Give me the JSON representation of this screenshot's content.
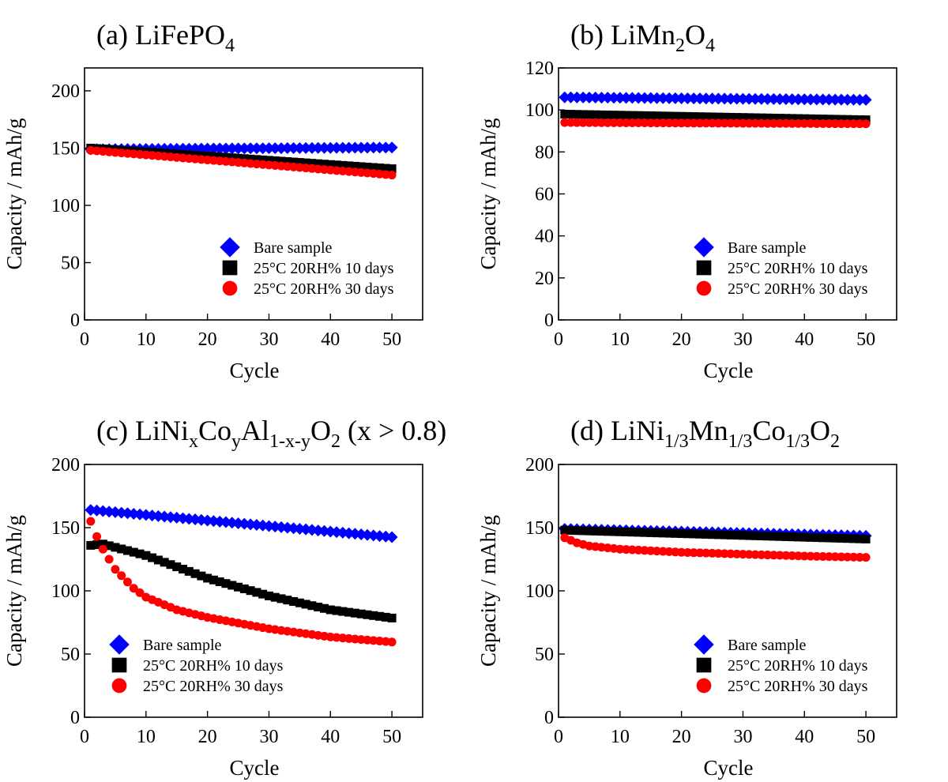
{
  "chart_data": [
    {
      "type": "scatter",
      "title": "(a) LiFePO4",
      "title_parts": [
        {
          "text": "(a) LiFePO",
          "sub": false
        },
        {
          "text": "4",
          "sub": true
        }
      ],
      "xlabel": "Cycle",
      "ylabel": "Capacity / mAh/g",
      "xlim": [
        0,
        55
      ],
      "ylim": [
        0,
        220
      ],
      "xticks": [
        0,
        10,
        20,
        30,
        40,
        50
      ],
      "yticks": [
        0,
        50,
        100,
        150,
        200
      ],
      "legend_position": "bottom-right",
      "series": [
        {
          "name": "Bare sample",
          "marker": "diamond",
          "color": "#0000ff",
          "start": 149,
          "end": 150.5,
          "shape": "linear"
        },
        {
          "name": "25°C 20RH% 10 days",
          "marker": "square",
          "color": "#000000",
          "start": 150,
          "end": 132,
          "shape": "linear"
        },
        {
          "name": "25°C 20RH% 30 days",
          "marker": "circle",
          "color": "#ff0000",
          "start": 148,
          "end": 126.5,
          "shape": "linear"
        }
      ]
    },
    {
      "type": "scatter",
      "title": "(b) LiMn2O4",
      "title_parts": [
        {
          "text": "(b) LiMn",
          "sub": false
        },
        {
          "text": "2",
          "sub": true
        },
        {
          "text": "O",
          "sub": false
        },
        {
          "text": "4",
          "sub": true
        }
      ],
      "xlabel": "Cycle",
      "ylabel": "Capacity / mAh/g",
      "xlim": [
        0,
        55
      ],
      "ylim": [
        0,
        120
      ],
      "xticks": [
        0,
        10,
        20,
        30,
        40,
        50
      ],
      "yticks": [
        0,
        20,
        40,
        60,
        80,
        100,
        120
      ],
      "legend_position": "bottom-right",
      "series": [
        {
          "name": "Bare sample",
          "marker": "diamond",
          "color": "#0000ff",
          "start": 106,
          "end": 104.8,
          "shape": "linear"
        },
        {
          "name": "25°C 20RH% 10 days",
          "marker": "square",
          "color": "#000000",
          "start": 98,
          "end": 95.3,
          "shape": "linear"
        },
        {
          "name": "25°C 20RH% 30 days",
          "marker": "circle",
          "color": "#ff0000",
          "start": 94,
          "end": 93.4,
          "shape": "linear"
        }
      ]
    },
    {
      "type": "scatter",
      "title": "(c) LiNixCoyAl1-x-yO2 (x > 0.8)",
      "title_parts": [
        {
          "text": "(c) LiNi",
          "sub": false
        },
        {
          "text": "x",
          "sub": true
        },
        {
          "text": "Co",
          "sub": false
        },
        {
          "text": "y",
          "sub": true
        },
        {
          "text": "Al",
          "sub": false
        },
        {
          "text": "1-x-y",
          "sub": true
        },
        {
          "text": "O",
          "sub": false
        },
        {
          "text": "2",
          "sub": true
        },
        {
          "text": " (x > 0.8)",
          "sub": false
        }
      ],
      "xlabel": "Cycle",
      "ylabel": "Capacity / mAh/g",
      "xlim": [
        0,
        55
      ],
      "ylim": [
        0,
        200
      ],
      "xticks": [
        0,
        10,
        20,
        30,
        40,
        50
      ],
      "yticks": [
        0,
        50,
        100,
        150,
        200
      ],
      "legend_position": "bottom-left",
      "series": [
        {
          "name": "Bare sample",
          "marker": "diamond",
          "color": "#0000ff",
          "start": 164,
          "end": 142.5,
          "shape": "linear"
        },
        {
          "name": "25°C 20RH% 10 days",
          "marker": "square",
          "color": "#000000",
          "start": 136,
          "end": 78.5,
          "shape": "slowdecay",
          "anchors": [
            [
              1,
              136
            ],
            [
              3,
              137
            ],
            [
              10,
              128
            ],
            [
              20,
              110
            ],
            [
              30,
              96
            ],
            [
              40,
              85
            ],
            [
              50,
              78.5
            ]
          ]
        },
        {
          "name": "25°C 20RH% 30 days",
          "marker": "circle",
          "color": "#ff0000",
          "start": 155,
          "end": 59.5,
          "shape": "fastdecay",
          "anchors": [
            [
              1,
              155
            ],
            [
              2,
              143
            ],
            [
              3,
              133
            ],
            [
              5,
              117
            ],
            [
              8,
              102
            ],
            [
              10,
              95
            ],
            [
              15,
              85
            ],
            [
              20,
              79
            ],
            [
              30,
              70
            ],
            [
              40,
              63.5
            ],
            [
              50,
              59.5
            ]
          ]
        }
      ]
    },
    {
      "type": "scatter",
      "title": "(d) LiNi1/3Mn1/3Co1/3O2",
      "title_parts": [
        {
          "text": "(d) LiNi",
          "sub": false
        },
        {
          "text": "1/3",
          "sub": true
        },
        {
          "text": "Mn",
          "sub": false
        },
        {
          "text": "1/3",
          "sub": true
        },
        {
          "text": "Co",
          "sub": false
        },
        {
          "text": "1/3",
          "sub": true
        },
        {
          "text": "O",
          "sub": false
        },
        {
          "text": "2",
          "sub": true
        }
      ],
      "xlabel": "Cycle",
      "ylabel": "Capacity / mAh/g",
      "xlim": [
        0,
        55
      ],
      "ylim": [
        0,
        200
      ],
      "xticks": [
        0,
        10,
        20,
        30,
        40,
        50
      ],
      "yticks": [
        0,
        50,
        100,
        150,
        200
      ],
      "legend_position": "bottom-right",
      "series": [
        {
          "name": "Bare sample",
          "marker": "diamond",
          "color": "#0000ff",
          "start": 149,
          "end": 143.5,
          "shape": "linear"
        },
        {
          "name": "25°C 20RH% 10 days",
          "marker": "square",
          "color": "#000000",
          "start": 148,
          "end": 141,
          "shape": "linear"
        },
        {
          "name": "25°C 20RH% 30 days",
          "marker": "circle",
          "color": "#ff0000",
          "start": 142,
          "end": 126.5,
          "shape": "fastdecay",
          "anchors": [
            [
              1,
              142
            ],
            [
              2,
              140
            ],
            [
              3,
              138
            ],
            [
              5,
              135.5
            ],
            [
              10,
              133
            ],
            [
              20,
              130.5
            ],
            [
              30,
              129
            ],
            [
              40,
              127.5
            ],
            [
              50,
              126.5
            ]
          ]
        }
      ]
    }
  ]
}
